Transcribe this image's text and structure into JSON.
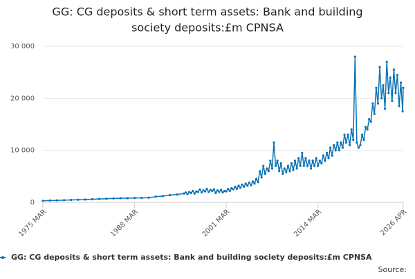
{
  "chart_data": {
    "type": "line",
    "title": [
      "GG: CG deposits & short term assets: Bank and building",
      "society deposits:£m CPNSA"
    ],
    "x": [
      "1975 MAR",
      "1976 MAR",
      "1977 MAR",
      "1978 MAR",
      "1979 MAR",
      "1980 MAR",
      "1981 MAR",
      "1982 MAR",
      "1983 MAR",
      "1984 MAR",
      "1985 MAR",
      "1986 MAR",
      "1987 MAR",
      "1988 MAR",
      "1989 MAR",
      "1990 MAR",
      "1991 MAR",
      "1992 MAR",
      "1993 MAR",
      "1994 MAR",
      "1995 MAR",
      "1995 JUN",
      "1995 SEP",
      "1995 DEC",
      "1996 MAR",
      "1996 JUN",
      "1996 SEP",
      "1996 DEC",
      "1997 MAR",
      "1997 JUN",
      "1997 SEP",
      "1997 DEC",
      "1998 MAR",
      "1998 JUN",
      "1998 SEP",
      "1998 DEC",
      "1999 MAR",
      "1999 JUN",
      "1999 SEP",
      "1999 DEC",
      "2000 MAR",
      "2000 JUN",
      "2000 SEP",
      "2000 DEC",
      "2001 MAR",
      "2001 JUN",
      "2001 SEP",
      "2001 DEC",
      "2002 MAR",
      "2002 JUN",
      "2002 SEP",
      "2002 DEC",
      "2003 MAR",
      "2003 JUN",
      "2003 SEP",
      "2003 DEC",
      "2004 MAR",
      "2004 JUN",
      "2004 SEP",
      "2004 DEC",
      "2005 MAR",
      "2005 JUN",
      "2005 SEP",
      "2005 DEC",
      "2006 MAR",
      "2006 JUN",
      "2006 SEP",
      "2006 DEC",
      "2007 MAR",
      "2007 JUN",
      "2007 SEP",
      "2007 DEC",
      "2008 MAR",
      "2008 JUN",
      "2008 SEP",
      "2008 DEC",
      "2009 MAR",
      "2009 JUN",
      "2009 SEP",
      "2009 DEC",
      "2010 MAR",
      "2010 JUN",
      "2010 SEP",
      "2010 DEC",
      "2011 MAR",
      "2011 JUN",
      "2011 SEP",
      "2011 DEC",
      "2012 MAR",
      "2012 JUN",
      "2012 SEP",
      "2012 DEC",
      "2013 MAR",
      "2013 JUN",
      "2013 SEP",
      "2013 DEC",
      "2014 MAR",
      "2014 JUN",
      "2014 SEP",
      "2014 DEC",
      "2015 MAR",
      "2015 JUN",
      "2015 SEP",
      "2015 DEC",
      "2016 MAR",
      "2016 JUN",
      "2016 SEP",
      "2016 DEC",
      "2017 MAR",
      "2017 JUN",
      "2017 SEP",
      "2017 DEC",
      "2018 MAR",
      "2018 JUN",
      "2018 SEP",
      "2018 DEC",
      "2019 MAR",
      "2019 JUN",
      "2019 SEP",
      "2019 DEC",
      "2020 MAR",
      "2020 JUN",
      "2020 SEP",
      "2020 DEC",
      "2021 MAR",
      "2021 JUN",
      "2021 SEP",
      "2021 DEC",
      "2022 MAR",
      "2022 JUN",
      "2022 SEP",
      "2022 DEC",
      "2023 MAR",
      "2023 JUN",
      "2023 SEP",
      "2023 DEC",
      "2024 MAR",
      "2024 JUN",
      "2024 SEP",
      "2024 DEC",
      "2025 MAR",
      "2025 JUN",
      "2025 SEP",
      "2025 DEC",
      "2026 MAR",
      "2026 APR"
    ],
    "series": [
      {
        "name": "GG: CG deposits & short term assets: Bank and building society deposits:£m CPNSA",
        "color": "#0b72b4",
        "values": [
          300,
          350,
          380,
          420,
          460,
          500,
          550,
          600,
          650,
          700,
          750,
          800,
          800,
          850,
          850,
          900,
          1100,
          1200,
          1400,
          1500,
          1700,
          1900,
          1600,
          2000,
          1800,
          2200,
          1700,
          2100,
          2000,
          2500,
          1900,
          2300,
          2100,
          2600,
          2000,
          2400,
          2200,
          2500,
          1800,
          2300,
          2000,
          2400,
          1900,
          2200,
          2100,
          2600,
          2200,
          2700,
          2500,
          3000,
          2600,
          3200,
          2800,
          3400,
          3000,
          3600,
          3200,
          3800,
          3300,
          4000,
          3600,
          4500,
          3900,
          6000,
          4800,
          7000,
          5500,
          6500,
          6000,
          8000,
          6500,
          11500,
          7000,
          8000,
          6000,
          7500,
          5500,
          6500,
          5800,
          7000,
          6000,
          7500,
          6200,
          8000,
          6500,
          8500,
          7000,
          9500,
          7000,
          8500,
          7000,
          8000,
          6500,
          8000,
          7000,
          8500,
          7000,
          8000,
          7500,
          9000,
          8000,
          9500,
          8500,
          10500,
          9000,
          11000,
          10000,
          11500,
          10000,
          11500,
          10500,
          13000,
          11500,
          13000,
          11000,
          14000,
          12000,
          28000,
          11500,
          10500,
          11000,
          13000,
          12000,
          14500,
          14000,
          16000,
          15500,
          19000,
          17000,
          22000,
          19000,
          26000,
          20000,
          22500,
          18000,
          27000,
          21000,
          24000,
          19500,
          25500,
          21000,
          24500,
          18500,
          23000,
          17500,
          22000
        ]
      }
    ],
    "xlim": [
      "1975 MAR",
      "2026 APR"
    ],
    "xticks": [
      "1975 MAR",
      "1988 MAR",
      "2001 MAR",
      "2014 MAR",
      "2026 APR"
    ],
    "ylim": [
      0,
      30000
    ],
    "yticks": [
      0,
      {
        "value": 10000,
        "label": "10 000"
      },
      {
        "value": 20000,
        "label": "20 000"
      },
      {
        "value": 30000,
        "label": "30 000"
      }
    ],
    "grid": true,
    "source": "Source:"
  }
}
